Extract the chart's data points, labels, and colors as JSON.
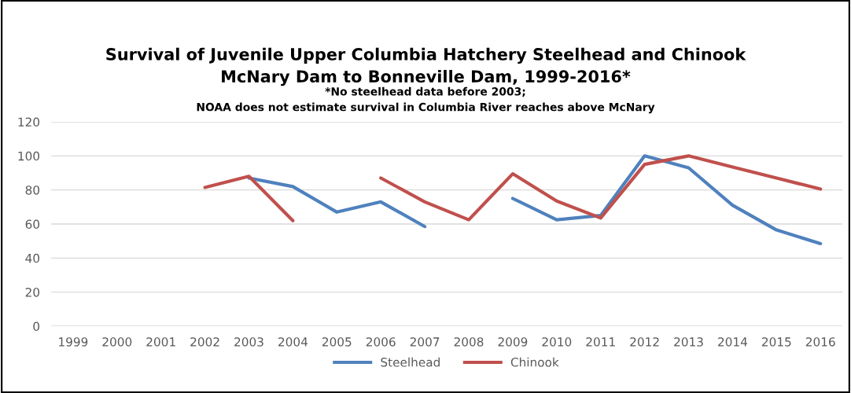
{
  "chart_data": {
    "type": "line",
    "title": "Survival of Juvenile Upper Columbia Hatchery Steelhead and Chinook\nMcNary Dam to Bonneville Dam, 1999-2016*",
    "subtitle": "*No steelhead data before 2003;\nNOAA does not estimate survival in Columbia River reaches above McNary",
    "categories": [
      "1999",
      "2000",
      "2001",
      "2002",
      "2003",
      "2004",
      "2005",
      "2006",
      "2007",
      "2008",
      "2009",
      "2010",
      "2011",
      "2012",
      "2013",
      "2014",
      "2015",
      "2016"
    ],
    "series": [
      {
        "name": "Steelhead",
        "color": "#4f81bd",
        "values": [
          null,
          null,
          null,
          null,
          87,
          82,
          67,
          73,
          58.5,
          null,
          75,
          62.5,
          65,
          100,
          93,
          71,
          56.5,
          48.5
        ]
      },
      {
        "name": "Chinook",
        "color": "#c0504d",
        "values": [
          null,
          null,
          null,
          81.5,
          88,
          62,
          null,
          87,
          73,
          62.5,
          89.5,
          73.5,
          63.5,
          95,
          100,
          93.5,
          87,
          80.5
        ]
      }
    ],
    "ylim": [
      0,
      120
    ],
    "yticks": [
      0,
      20,
      40,
      60,
      80,
      100,
      120
    ],
    "grid": "y",
    "legend": "bottom",
    "line_style": "solid",
    "marker": "none"
  }
}
